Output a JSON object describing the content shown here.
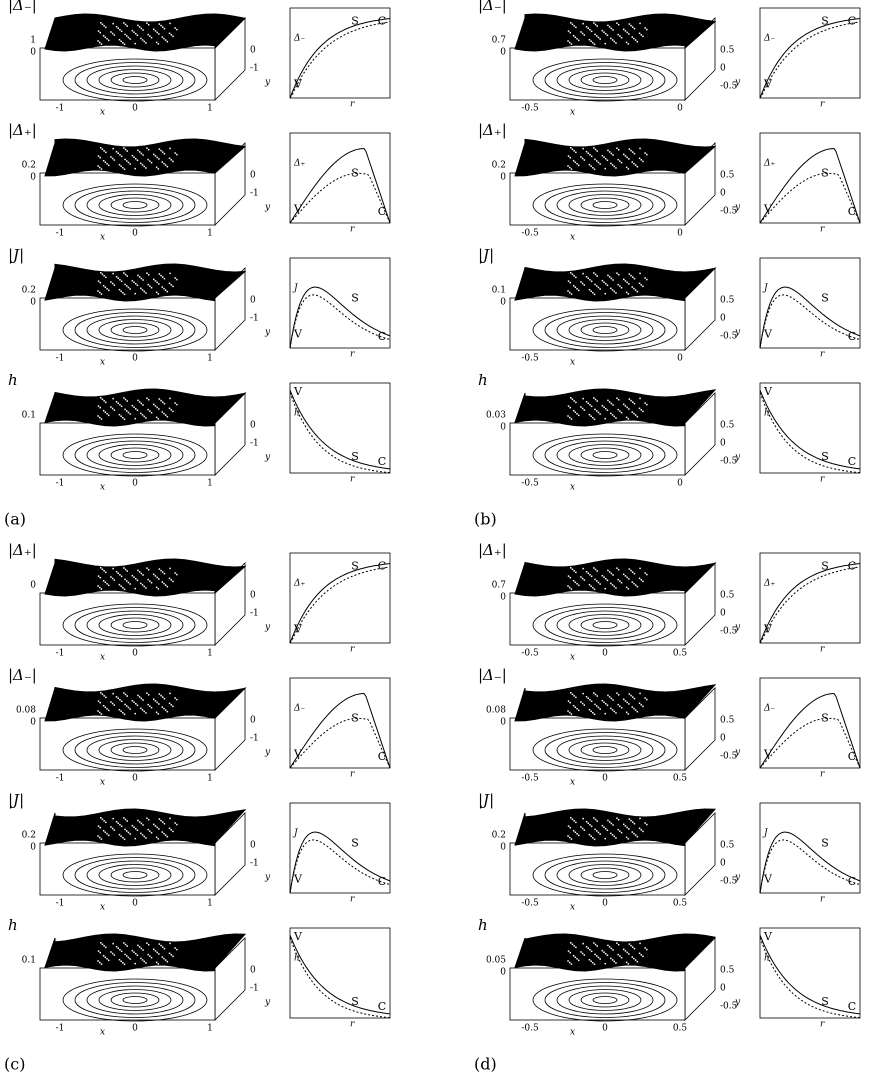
{
  "panels": [
    {
      "label": "(a)",
      "rows": [
        {
          "quantity": "|Δ₋|",
          "z_ticks": [
            "1",
            "0"
          ],
          "x_ticks": [
            "-1",
            "0",
            "1"
          ],
          "y_ticks": [
            "0",
            "-1"
          ],
          "x_label": "x",
          "y_label": "y",
          "plot_ylabel": "Δ₋",
          "plot_xlabel": "r",
          "plot_labels": [
            "V",
            "S",
            "C"
          ]
        },
        {
          "quantity": "|Δ₊|",
          "z_ticks": [
            "0.2",
            "0"
          ],
          "x_ticks": [
            "-1",
            "0",
            "1"
          ],
          "y_ticks": [
            "0",
            "-1"
          ],
          "x_label": "x",
          "y_label": "y",
          "plot_ylabel": "Δ₊",
          "plot_xlabel": "r",
          "plot_labels": [
            "V",
            "S",
            "C"
          ]
        },
        {
          "quantity": "|J|",
          "z_ticks": [
            "0.2",
            "0"
          ],
          "x_ticks": [
            "-1",
            "0",
            "1"
          ],
          "y_ticks": [
            "0",
            "-1"
          ],
          "x_label": "x",
          "y_label": "y",
          "plot_ylabel": "J",
          "plot_xlabel": "r",
          "plot_labels": [
            "V",
            "S",
            "C"
          ]
        },
        {
          "quantity": "h",
          "z_ticks": [
            "0.1"
          ],
          "x_ticks": [
            "-1",
            "0",
            "1"
          ],
          "y_ticks": [
            "0",
            "-1"
          ],
          "x_label": "x",
          "y_label": "y",
          "plot_ylabel": "h",
          "plot_xlabel": "r",
          "plot_labels": [
            "V",
            "S",
            "C"
          ]
        }
      ]
    },
    {
      "label": "(b)",
      "rows": [
        {
          "quantity": "|Δ₋|",
          "z_ticks": [
            "0.7",
            "0"
          ],
          "x_ticks": [
            "-0.5",
            "0"
          ],
          "y_ticks": [
            "0.5",
            "0",
            "-0.5"
          ],
          "x_label": "x",
          "y_label": "y",
          "plot_ylabel": "Δ₋",
          "plot_xlabel": "r",
          "plot_labels": [
            "V",
            "S",
            "C"
          ]
        },
        {
          "quantity": "|Δ₊|",
          "z_ticks": [
            "0.2",
            "0"
          ],
          "x_ticks": [
            "-0.5",
            "0"
          ],
          "y_ticks": [
            "0.5",
            "0",
            "-0.5"
          ],
          "x_label": "x",
          "y_label": "y",
          "plot_ylabel": "Δ₊",
          "plot_xlabel": "r",
          "plot_labels": [
            "V",
            "S",
            "C"
          ]
        },
        {
          "quantity": "|J|",
          "z_ticks": [
            "0.1",
            "0"
          ],
          "x_ticks": [
            "-0.5",
            "0"
          ],
          "y_ticks": [
            "0.5",
            "0",
            "-0.5"
          ],
          "x_label": "x",
          "y_label": "y",
          "plot_ylabel": "J",
          "plot_xlabel": "r",
          "plot_labels": [
            "V",
            "S",
            "C"
          ]
        },
        {
          "quantity": "h",
          "z_ticks": [
            "0.03",
            "0"
          ],
          "x_ticks": [
            "-0.5",
            "0"
          ],
          "y_ticks": [
            "0.5",
            "0",
            "-0.5"
          ],
          "x_label": "x",
          "y_label": "y",
          "plot_ylabel": "h",
          "plot_xlabel": "r",
          "plot_labels": [
            "V",
            "S",
            "C"
          ]
        }
      ]
    },
    {
      "label": "(c)",
      "rows": [
        {
          "quantity": "|Δ₊|",
          "z_ticks": [
            "0"
          ],
          "x_ticks": [
            "-1",
            "0",
            "1"
          ],
          "y_ticks": [
            "0",
            "-1"
          ],
          "x_label": "x",
          "y_label": "y",
          "plot_ylabel": "Δ₊",
          "plot_xlabel": "r",
          "plot_labels": [
            "V",
            "S",
            "C"
          ]
        },
        {
          "quantity": "|Δ₋|",
          "z_ticks": [
            "0.08",
            "0"
          ],
          "x_ticks": [
            "-1",
            "0",
            "1"
          ],
          "y_ticks": [
            "0",
            "-1"
          ],
          "x_label": "x",
          "y_label": "y",
          "plot_ylabel": "Δ₋",
          "plot_xlabel": "r",
          "plot_labels": [
            "V",
            "S",
            "C"
          ]
        },
        {
          "quantity": "|J|",
          "z_ticks": [
            "0.2",
            "0"
          ],
          "x_ticks": [
            "-1",
            "0",
            "1"
          ],
          "y_ticks": [
            "0",
            "-1"
          ],
          "x_label": "x",
          "y_label": "y",
          "plot_ylabel": "J",
          "plot_xlabel": "r",
          "plot_labels": [
            "V",
            "S",
            "C"
          ]
        },
        {
          "quantity": "h",
          "z_ticks": [
            "0.1"
          ],
          "x_ticks": [
            "-1",
            "0",
            "1"
          ],
          "y_ticks": [
            "0",
            "-1"
          ],
          "x_label": "x",
          "y_label": "y",
          "plot_ylabel": "h",
          "plot_xlabel": "r",
          "plot_labels": [
            "V",
            "S",
            "C"
          ]
        }
      ]
    },
    {
      "label": "(d)",
      "rows": [
        {
          "quantity": "|Δ₊|",
          "z_ticks": [
            "0.7",
            "0"
          ],
          "x_ticks": [
            "-0.5",
            "0",
            "0.5"
          ],
          "y_ticks": [
            "0.5",
            "0",
            "-0.5"
          ],
          "x_label": "x",
          "y_label": "y",
          "plot_ylabel": "Δ₊",
          "plot_xlabel": "r",
          "plot_labels": [
            "V",
            "S",
            "C"
          ]
        },
        {
          "quantity": "|Δ₋|",
          "z_ticks": [
            "0.08",
            "0"
          ],
          "x_ticks": [
            "-0.5",
            "0",
            "0.5"
          ],
          "y_ticks": [
            "0.5",
            "0",
            "-0.5"
          ],
          "x_label": "x",
          "y_label": "y",
          "plot_ylabel": "Δ₋",
          "plot_xlabel": "r",
          "plot_labels": [
            "V",
            "S",
            "C"
          ]
        },
        {
          "quantity": "|J|",
          "z_ticks": [
            "0.2",
            "0"
          ],
          "x_ticks": [
            "-0.5",
            "0",
            "0.5"
          ],
          "y_ticks": [
            "0.5",
            "0",
            "-0.5"
          ],
          "x_label": "x",
          "y_label": "y",
          "plot_ylabel": "J",
          "plot_xlabel": "r",
          "plot_labels": [
            "V",
            "S",
            "C"
          ]
        },
        {
          "quantity": "h",
          "z_ticks": [
            "0.05",
            "0"
          ],
          "x_ticks": [
            "-0.5",
            "0",
            "0.5"
          ],
          "y_ticks": [
            "0.5",
            "0",
            "-0.5"
          ],
          "x_label": "x",
          "y_label": "y",
          "plot_ylabel": "h",
          "plot_xlabel": "r",
          "plot_labels": [
            "V",
            "S",
            "C"
          ]
        }
      ]
    }
  ]
}
